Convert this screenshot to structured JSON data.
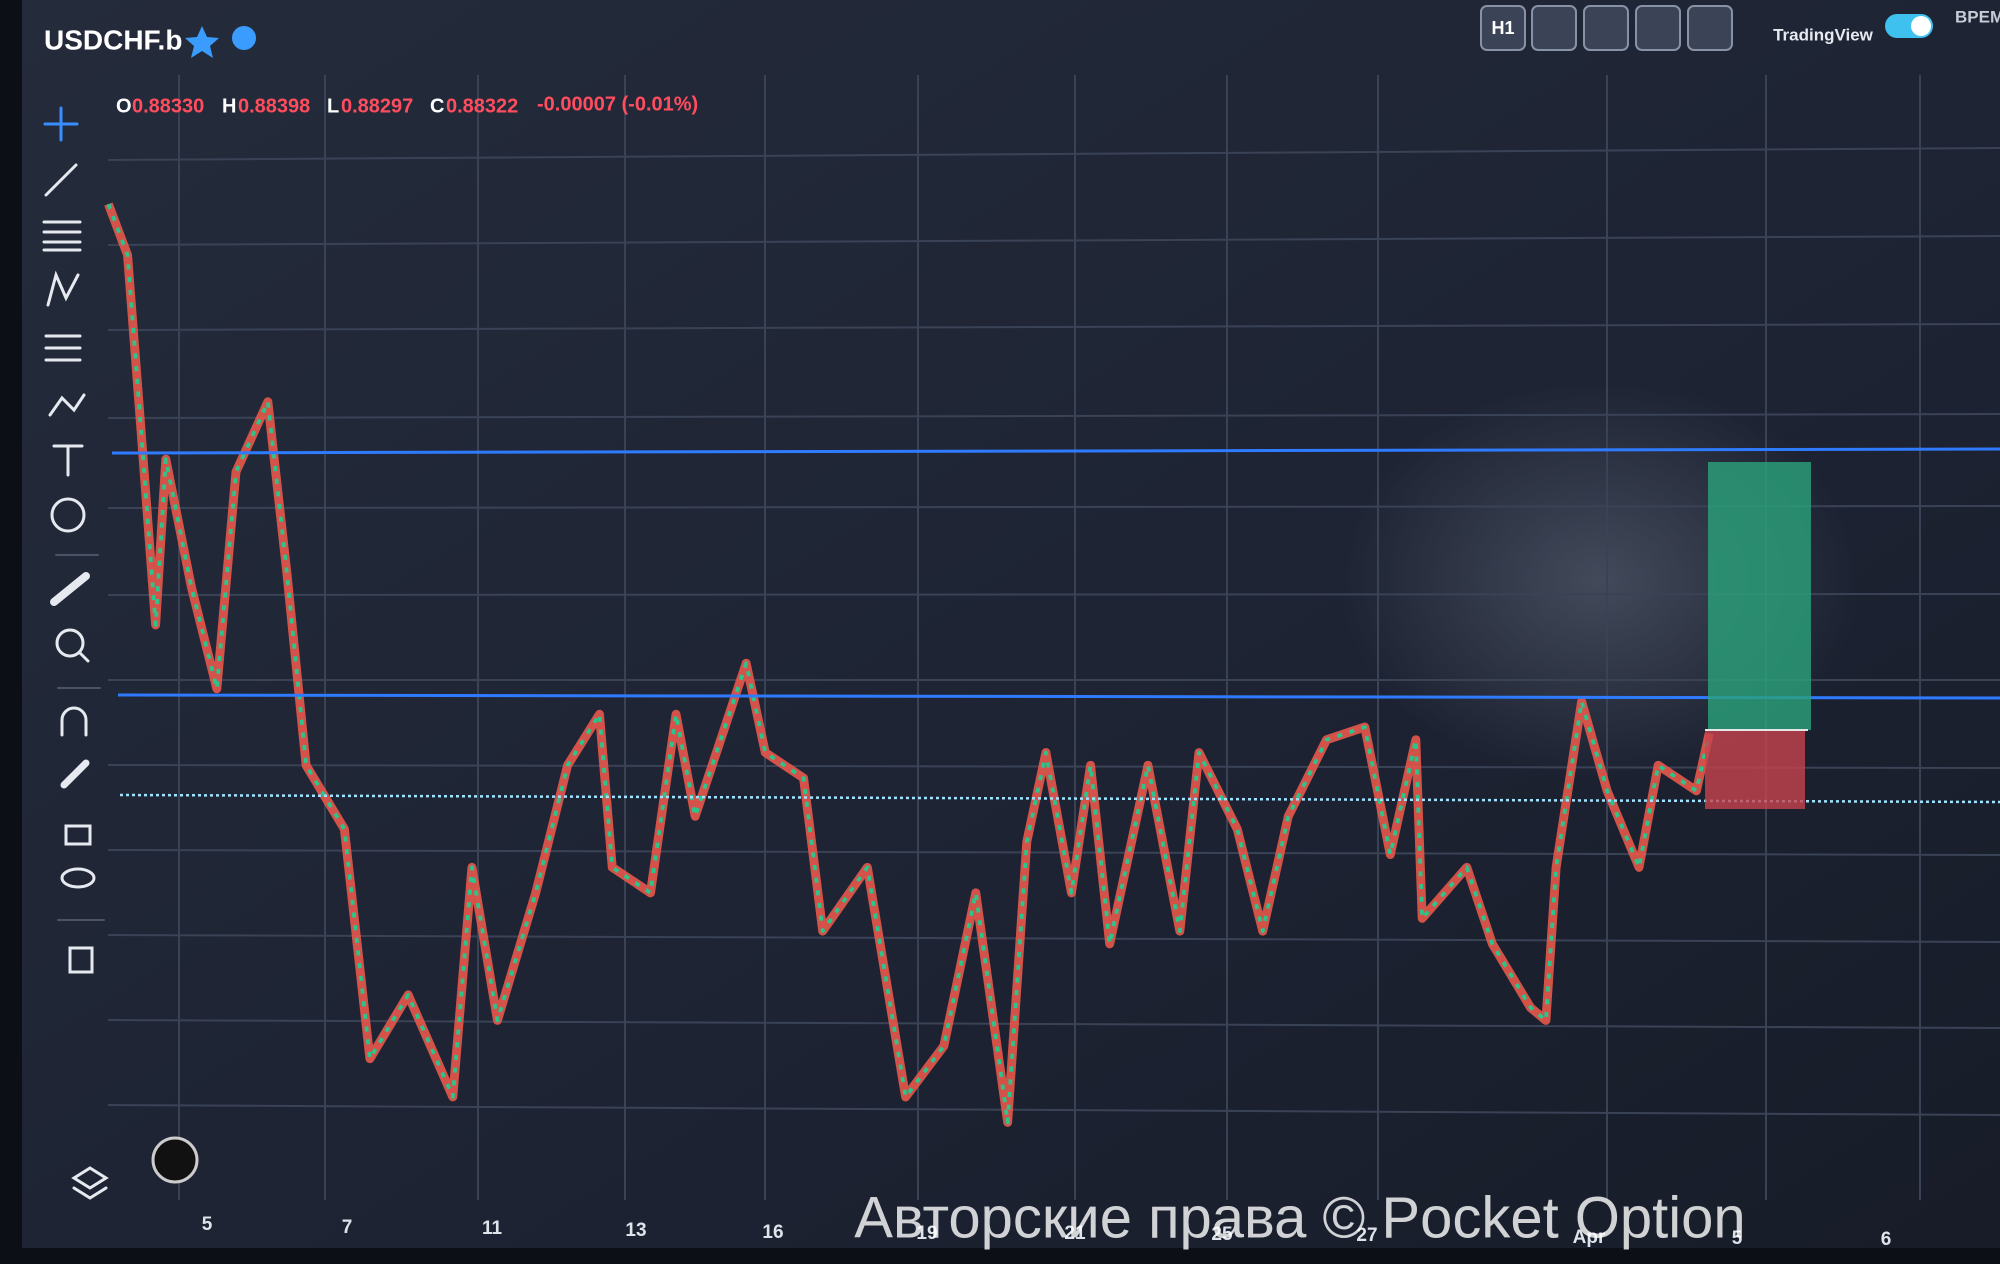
{
  "header": {
    "symbol": "USDCHF.b",
    "interval": "H1",
    "brand": "TradingView",
    "cut_label": "ВРЕМ"
  },
  "ohlc": {
    "open_label": "O",
    "open": "0.88330",
    "high_label": "H",
    "high": "0.88398",
    "low_label": "L",
    "low": "0.88297",
    "close_label": "C",
    "close": "0.88322",
    "change": "-0.00007 (-0.01%)"
  },
  "x_axis": {
    "labels": [
      "5",
      "7",
      "11",
      "13",
      "16",
      "19",
      "21",
      "25",
      "27",
      "Apr",
      "5",
      "6"
    ]
  },
  "watermark": "Авторские права © Pocket Option"
}
